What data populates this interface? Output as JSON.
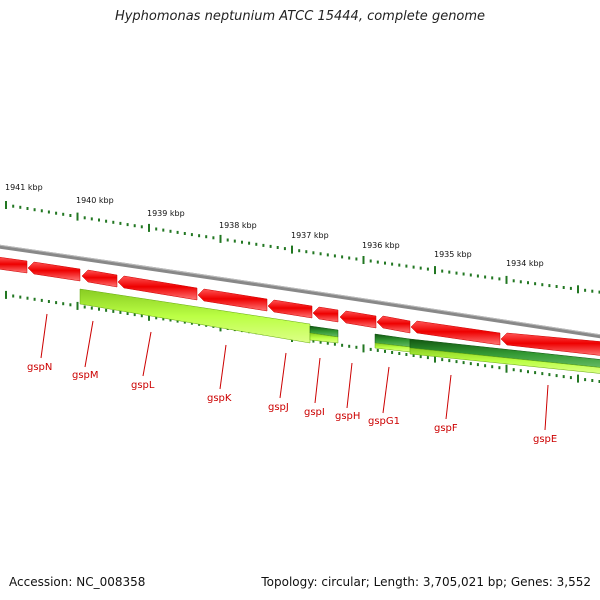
{
  "title": "Hyphomonas neptunium ATCC 15444, complete genome",
  "kbp_labels": [
    "1941 kbp",
    "1940 kbp",
    "1939 kbp",
    "1938 kbp",
    "1937 kbp",
    "1936 kbp",
    "1935 kbp",
    "1934 kbp"
  ],
  "genes": [
    "gspN",
    "gspM",
    "gspL",
    "gspK",
    "gspJ",
    "gspI",
    "gspH",
    "gspG1",
    "gspF",
    "gspE"
  ],
  "colors": {
    "reverse_gene": "#ff0000",
    "forward_light": "#aaff22",
    "forward_dark": "#227722",
    "backbone": "#888888",
    "tick": "#227722",
    "label": "#cc0000"
  },
  "footer": {
    "accession": "Accession: NC_008358",
    "summary": "Topology: circular; Length: 3,705,021 bp; Genes: 3,552"
  }
}
